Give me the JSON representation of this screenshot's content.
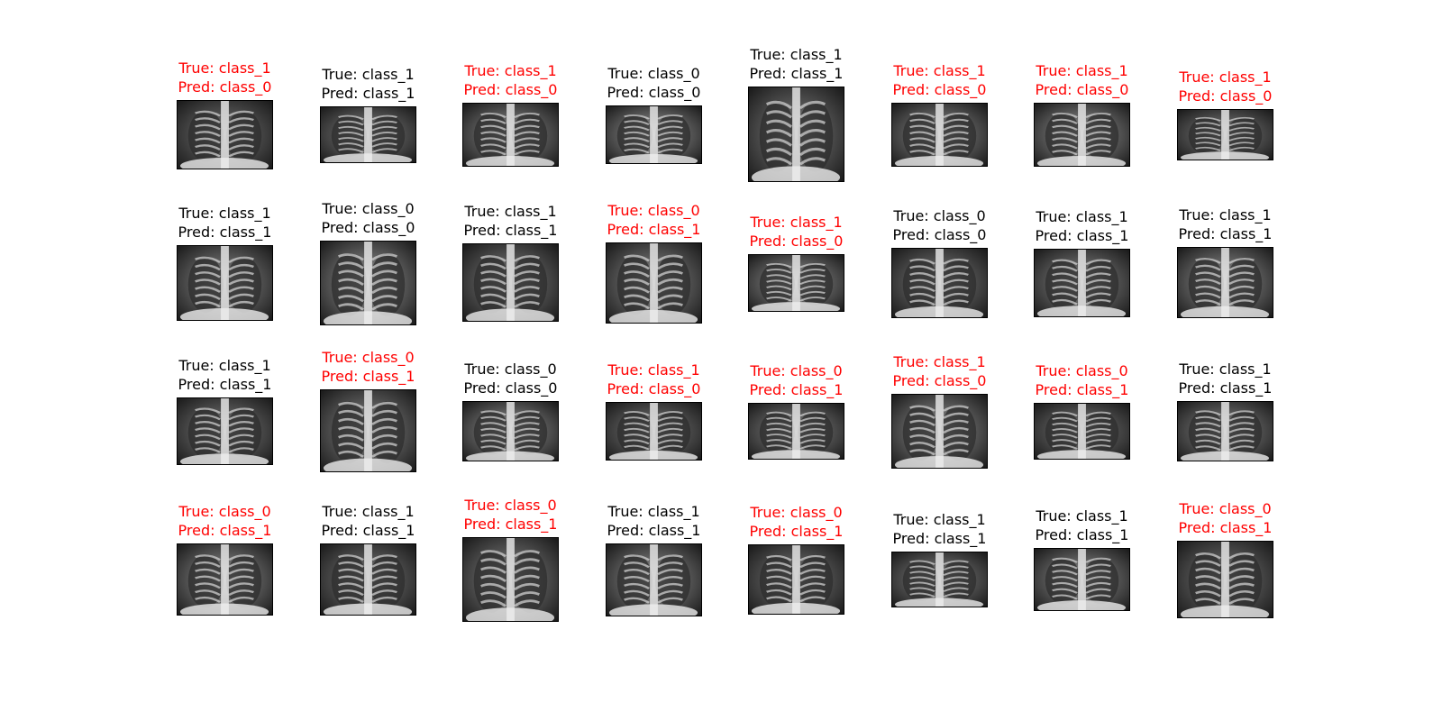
{
  "colors": {
    "correct": "#000000",
    "wrong": "#ff0000"
  },
  "panels": [
    {
      "true_label": "True: class_1",
      "pred_label": "Pred: class_0",
      "correct": false,
      "icon": "chest-xray-image"
    },
    {
      "true_label": "True: class_1",
      "pred_label": "Pred: class_1",
      "correct": true,
      "icon": "chest-xray-image"
    },
    {
      "true_label": "True: class_1",
      "pred_label": "Pred: class_0",
      "correct": false,
      "icon": "chest-xray-image"
    },
    {
      "true_label": "True: class_0",
      "pred_label": "Pred: class_0",
      "correct": true,
      "icon": "chest-xray-image"
    },
    {
      "true_label": "True: class_1",
      "pred_label": "Pred: class_1",
      "correct": true,
      "icon": "chest-xray-image"
    },
    {
      "true_label": "True: class_1",
      "pred_label": "Pred: class_0",
      "correct": false,
      "icon": "chest-xray-image"
    },
    {
      "true_label": "True: class_1",
      "pred_label": "Pred: class_0",
      "correct": false,
      "icon": "chest-xray-image"
    },
    {
      "true_label": "True: class_1",
      "pred_label": "Pred: class_0",
      "correct": false,
      "icon": "chest-xray-image"
    },
    {
      "true_label": "True: class_1",
      "pred_label": "Pred: class_1",
      "correct": true,
      "icon": "chest-xray-image"
    },
    {
      "true_label": "True: class_0",
      "pred_label": "Pred: class_0",
      "correct": true,
      "icon": "chest-xray-image"
    },
    {
      "true_label": "True: class_1",
      "pred_label": "Pred: class_1",
      "correct": true,
      "icon": "chest-xray-image"
    },
    {
      "true_label": "True: class_0",
      "pred_label": "Pred: class_1",
      "correct": false,
      "icon": "chest-xray-image"
    },
    {
      "true_label": "True: class_1",
      "pred_label": "Pred: class_0",
      "correct": false,
      "icon": "chest-xray-image"
    },
    {
      "true_label": "True: class_0",
      "pred_label": "Pred: class_0",
      "correct": true,
      "icon": "chest-xray-image"
    },
    {
      "true_label": "True: class_1",
      "pred_label": "Pred: class_1",
      "correct": true,
      "icon": "chest-xray-image"
    },
    {
      "true_label": "True: class_1",
      "pred_label": "Pred: class_1",
      "correct": true,
      "icon": "chest-xray-image"
    },
    {
      "true_label": "True: class_1",
      "pred_label": "Pred: class_1",
      "correct": true,
      "icon": "chest-xray-image"
    },
    {
      "true_label": "True: class_0",
      "pred_label": "Pred: class_1",
      "correct": false,
      "icon": "chest-xray-image"
    },
    {
      "true_label": "True: class_0",
      "pred_label": "Pred: class_0",
      "correct": true,
      "icon": "chest-xray-image"
    },
    {
      "true_label": "True: class_1",
      "pred_label": "Pred: class_0",
      "correct": false,
      "icon": "chest-xray-image"
    },
    {
      "true_label": "True: class_0",
      "pred_label": "Pred: class_1",
      "correct": false,
      "icon": "chest-xray-image"
    },
    {
      "true_label": "True: class_1",
      "pred_label": "Pred: class_0",
      "correct": false,
      "icon": "chest-xray-image"
    },
    {
      "true_label": "True: class_0",
      "pred_label": "Pred: class_1",
      "correct": false,
      "icon": "chest-xray-image"
    },
    {
      "true_label": "True: class_1",
      "pred_label": "Pred: class_1",
      "correct": true,
      "icon": "chest-xray-image"
    },
    {
      "true_label": "True: class_0",
      "pred_label": "Pred: class_1",
      "correct": false,
      "icon": "chest-xray-image"
    },
    {
      "true_label": "True: class_1",
      "pred_label": "Pred: class_1",
      "correct": true,
      "icon": "chest-xray-image"
    },
    {
      "true_label": "True: class_0",
      "pred_label": "Pred: class_1",
      "correct": false,
      "icon": "chest-xray-image"
    },
    {
      "true_label": "True: class_1",
      "pred_label": "Pred: class_1",
      "correct": true,
      "icon": "chest-xray-image"
    },
    {
      "true_label": "True: class_0",
      "pred_label": "Pred: class_1",
      "correct": false,
      "icon": "chest-xray-image"
    },
    {
      "true_label": "True: class_1",
      "pred_label": "Pred: class_1",
      "correct": true,
      "icon": "chest-xray-image"
    },
    {
      "true_label": "True: class_1",
      "pred_label": "Pred: class_1",
      "correct": true,
      "icon": "chest-xray-image"
    },
    {
      "true_label": "True: class_0",
      "pred_label": "Pred: class_1",
      "correct": false,
      "icon": "chest-xray-image"
    }
  ]
}
